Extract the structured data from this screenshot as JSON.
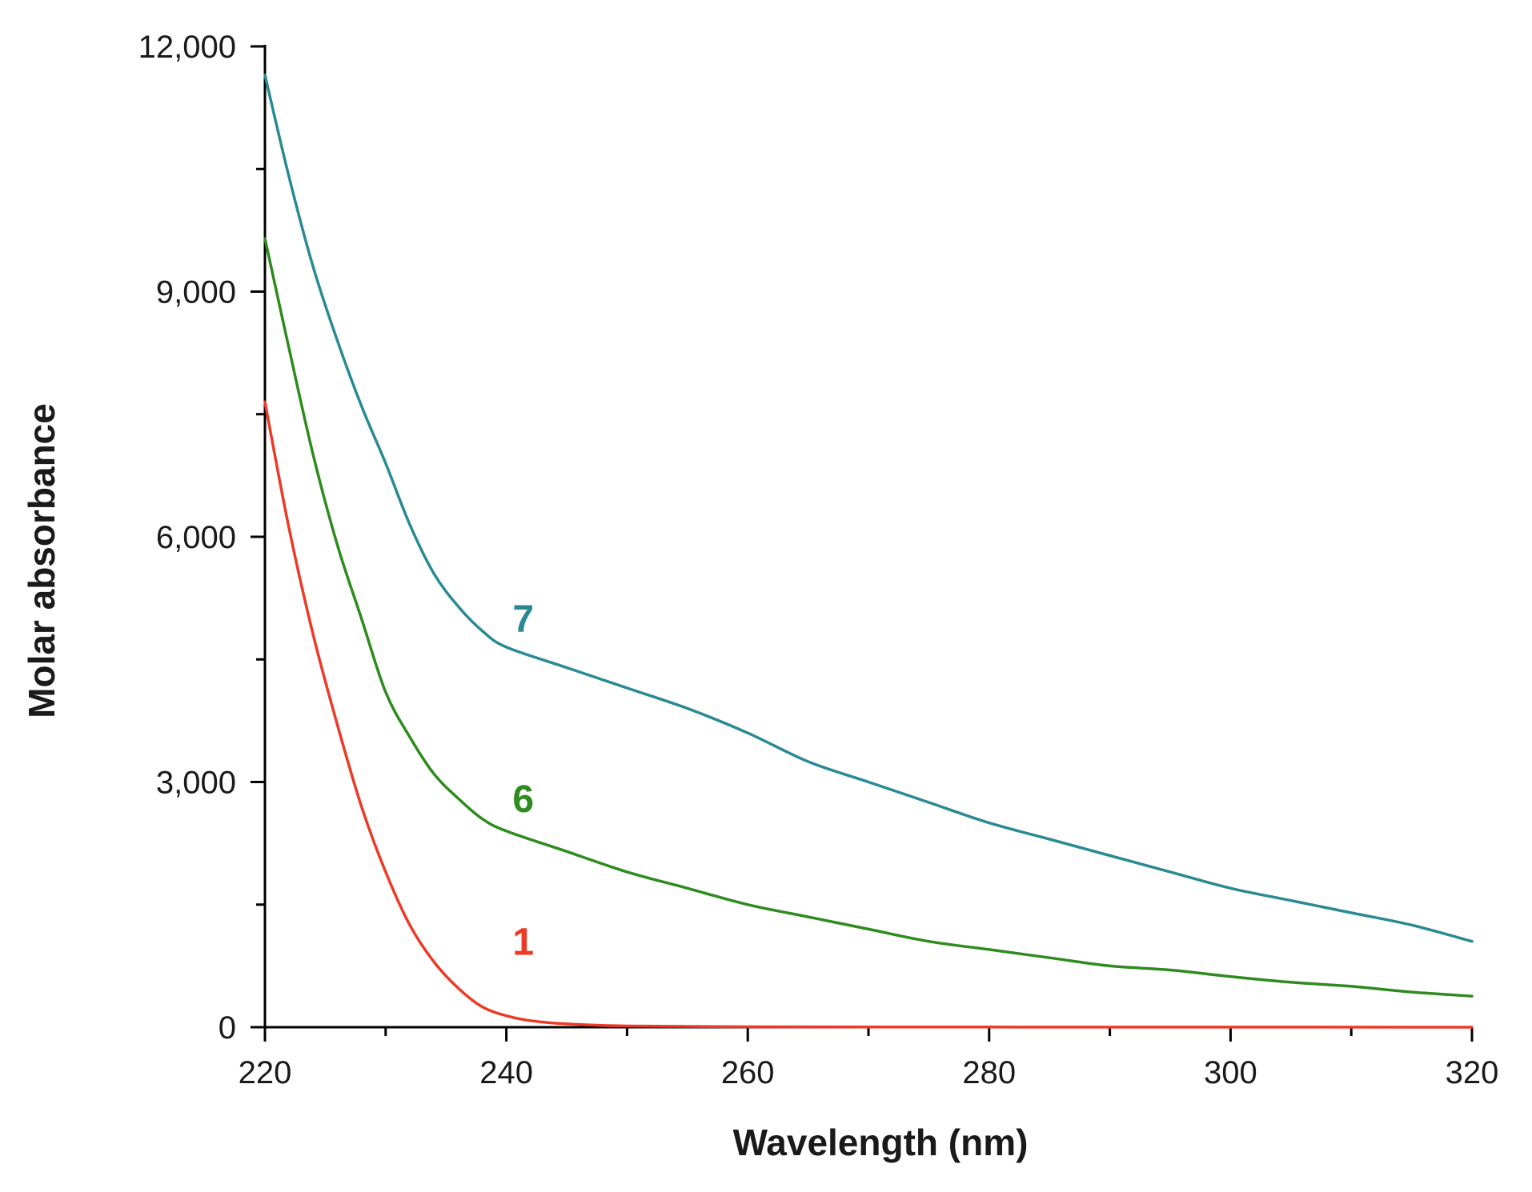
{
  "chart_data": {
    "type": "line",
    "title": "",
    "xlabel": "Wavelength (nm)",
    "ylabel": "Molar absorbance",
    "xlim": [
      220,
      320
    ],
    "ylim": [
      0,
      12000
    ],
    "x_ticks": [
      220,
      240,
      260,
      280,
      300,
      320
    ],
    "x_tick_labels": [
      "220",
      "240",
      "260",
      "280",
      "300",
      "320"
    ],
    "x_minor_step": 10,
    "y_ticks": [
      0,
      3000,
      6000,
      9000,
      12000
    ],
    "y_tick_labels": [
      "0",
      "3,000",
      "6,000",
      "9,000",
      "12,000"
    ],
    "y_minor_step": 1500,
    "grid": false,
    "legend": "none",
    "series": [
      {
        "name": "7",
        "color": "#2a8a94",
        "label_at": [
          241,
          5000
        ],
        "points": [
          [
            220,
            11650
          ],
          [
            222,
            10400
          ],
          [
            224,
            9300
          ],
          [
            226,
            8400
          ],
          [
            228,
            7600
          ],
          [
            230,
            6900
          ],
          [
            232,
            6150
          ],
          [
            234,
            5550
          ],
          [
            236,
            5150
          ],
          [
            238,
            4850
          ],
          [
            240,
            4650
          ],
          [
            245,
            4400
          ],
          [
            250,
            4150
          ],
          [
            255,
            3900
          ],
          [
            260,
            3600
          ],
          [
            265,
            3250
          ],
          [
            270,
            3000
          ],
          [
            275,
            2750
          ],
          [
            280,
            2500
          ],
          [
            285,
            2300
          ],
          [
            290,
            2100
          ],
          [
            295,
            1900
          ],
          [
            300,
            1700
          ],
          [
            305,
            1550
          ],
          [
            310,
            1400
          ],
          [
            315,
            1250
          ],
          [
            320,
            1050
          ]
        ]
      },
      {
        "name": "6",
        "color": "#2e8b1e",
        "label_at": [
          241,
          2800
        ],
        "points": [
          [
            220,
            9650
          ],
          [
            222,
            8300
          ],
          [
            224,
            7000
          ],
          [
            226,
            5900
          ],
          [
            228,
            5000
          ],
          [
            230,
            4100
          ],
          [
            232,
            3550
          ],
          [
            234,
            3100
          ],
          [
            236,
            2800
          ],
          [
            238,
            2550
          ],
          [
            240,
            2400
          ],
          [
            245,
            2150
          ],
          [
            250,
            1900
          ],
          [
            255,
            1700
          ],
          [
            260,
            1500
          ],
          [
            265,
            1350
          ],
          [
            270,
            1200
          ],
          [
            275,
            1050
          ],
          [
            280,
            950
          ],
          [
            285,
            850
          ],
          [
            290,
            750
          ],
          [
            295,
            700
          ],
          [
            300,
            620
          ],
          [
            305,
            550
          ],
          [
            310,
            500
          ],
          [
            315,
            430
          ],
          [
            320,
            380
          ]
        ]
      },
      {
        "name": "1",
        "color": "#ec3a26",
        "label_at": [
          241,
          1050
        ],
        "points": [
          [
            220,
            7650
          ],
          [
            222,
            6100
          ],
          [
            224,
            4800
          ],
          [
            226,
            3700
          ],
          [
            228,
            2700
          ],
          [
            230,
            1900
          ],
          [
            232,
            1250
          ],
          [
            234,
            800
          ],
          [
            236,
            480
          ],
          [
            238,
            250
          ],
          [
            240,
            140
          ],
          [
            242,
            80
          ],
          [
            245,
            40
          ],
          [
            250,
            15
          ],
          [
            260,
            5
          ],
          [
            280,
            2
          ],
          [
            300,
            1
          ],
          [
            320,
            0
          ]
        ]
      }
    ]
  }
}
